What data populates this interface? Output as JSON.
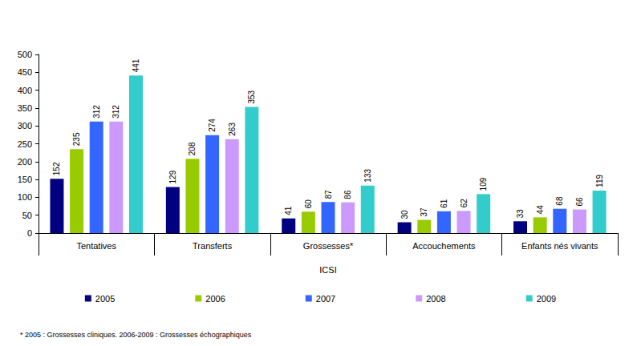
{
  "chart_data": {
    "type": "bar",
    "categories": [
      "Tentatives",
      "Transferts",
      "Grossesses*",
      "Accouchements",
      "Enfants nés vivants"
    ],
    "xlabel": "ICSI",
    "series": [
      {
        "name": "2005",
        "color": "#000080",
        "values": [
          152,
          129,
          41,
          30,
          33
        ]
      },
      {
        "name": "2006",
        "color": "#99cc00",
        "values": [
          235,
          208,
          60,
          37,
          44
        ]
      },
      {
        "name": "2007",
        "color": "#3366ff",
        "values": [
          312,
          274,
          87,
          61,
          68
        ]
      },
      {
        "name": "2008",
        "color": "#cc99ff",
        "values": [
          312,
          263,
          86,
          62,
          66
        ]
      },
      {
        "name": "2009",
        "color": "#33cccc",
        "values": [
          441,
          353,
          133,
          109,
          119
        ]
      }
    ],
    "ylim": [
      0,
      500
    ],
    "yticks": [
      0,
      50,
      100,
      150,
      200,
      250,
      300,
      350,
      400,
      450,
      500
    ],
    "grid": false,
    "legend": "bottom",
    "data_labels": true,
    "annotations": [
      "* 2005 : Grossesses cliniques. 2006-2009 : Grossesses échographiques"
    ]
  }
}
